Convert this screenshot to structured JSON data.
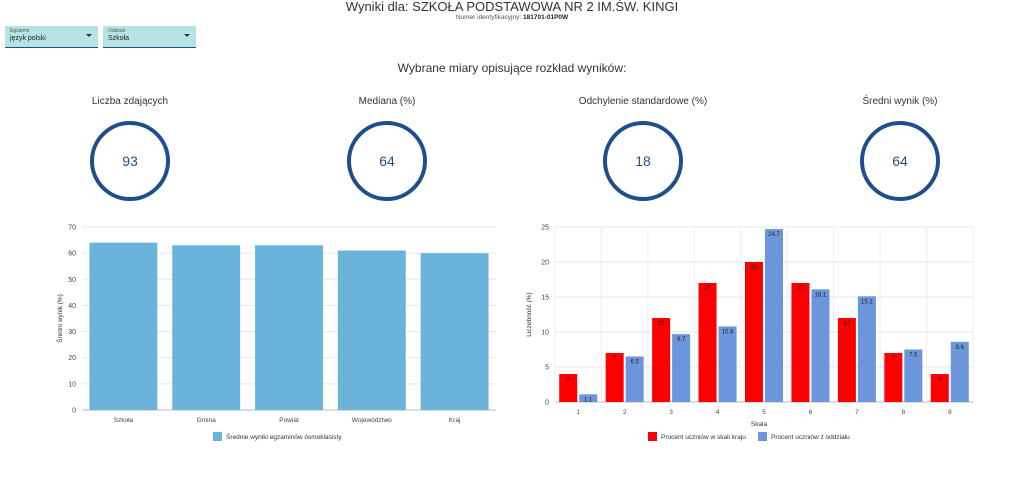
{
  "header": {
    "title": "Wyniki dla: SZKOŁA PODSTAWOWA NR 2 IM.ŚW. KINGI",
    "id_label": "Numer identyfikacyjny:",
    "id_value": "181701-01P0W"
  },
  "filters": {
    "egzamin": {
      "label": "Egzamin",
      "value": "język polski"
    },
    "oddzial": {
      "label": "Oddział",
      "value": "Szkoła"
    }
  },
  "section_title": "Wybrane miary opisujące rozkład wyników:",
  "stats": [
    {
      "title": "Liczba zdających",
      "value": "93"
    },
    {
      "title": "Mediana (%)",
      "value": "64"
    },
    {
      "title": "Odchylenie standardowe (%)",
      "value": "18"
    },
    {
      "title": "Średni wynik (%)",
      "value": "64"
    }
  ],
  "colors": {
    "accent": "#1f4e8c",
    "bar": "#6ab4dc",
    "red": "#ff0000",
    "blue": "#6b96db",
    "filter_bg": "#b6e3e3"
  },
  "chart_data": [
    {
      "type": "bar",
      "categories": [
        "Szkoła",
        "Gmina",
        "Powiat",
        "Województwo",
        "Kraj"
      ],
      "series": [
        {
          "name": "Średnie wyniki egzaminów ósmoklasisty",
          "values": [
            64,
            63,
            63,
            61,
            60
          ]
        }
      ],
      "ylabel": "Średni wynik (%)",
      "xlabel": "",
      "ylim": [
        0,
        70
      ],
      "yticks": [
        0,
        10,
        20,
        30,
        40,
        50,
        60,
        70
      ],
      "grid": true,
      "legend": "bottom"
    },
    {
      "type": "bar",
      "categories": [
        "1",
        "2",
        "3",
        "4",
        "5",
        "6",
        "7",
        "8",
        "9"
      ],
      "series": [
        {
          "name": "Procent uczniów w skali kraju",
          "values": [
            4,
            7,
            12,
            17,
            20,
            17,
            12,
            7,
            4
          ],
          "labels": [
            "4",
            "7",
            "12",
            "17",
            "20",
            "17",
            "12",
            "7",
            "4"
          ]
        },
        {
          "name": "Procent uczniów z oddziału",
          "values": [
            1.1,
            6.5,
            9.7,
            10.8,
            24.7,
            16.1,
            15.1,
            7.5,
            8.6
          ],
          "labels": [
            "1.1",
            "6.5",
            "9.7",
            "10.8",
            "24.7",
            "16.1",
            "15.1",
            "7.5",
            "8.6"
          ]
        }
      ],
      "xlabel": "Skala",
      "ylabel": "Liczebność (%)",
      "ylim": [
        0,
        25
      ],
      "yticks": [
        0,
        5,
        10,
        15,
        20,
        25
      ],
      "grid": true,
      "legend": "bottom"
    }
  ]
}
